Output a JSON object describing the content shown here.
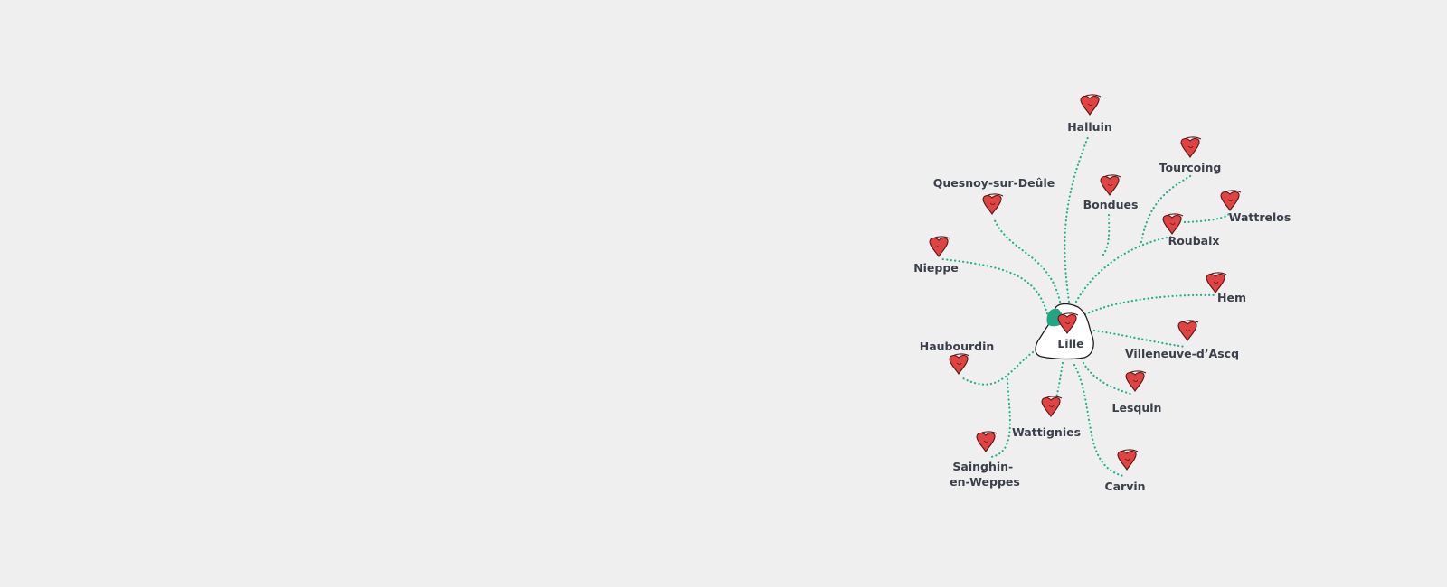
{
  "map": {
    "hub": {
      "name": "Lille",
      "icon": "city-outline-icon"
    },
    "destinations": [
      {
        "name": "Halluin"
      },
      {
        "name": "Quesnoy-sur-Deûle"
      },
      {
        "name": "Bondues"
      },
      {
        "name": "Tourcoing"
      },
      {
        "name": "Wattrelos"
      },
      {
        "name": "Roubaix"
      },
      {
        "name": "Nieppe"
      },
      {
        "name": "Hem"
      },
      {
        "name": "Villeneuve-d’Ascq"
      },
      {
        "name": "Haubourdin"
      },
      {
        "name": "Lesquin"
      },
      {
        "name": "Wattignies"
      },
      {
        "name": "Sainghin-",
        "name_line2": "en-Weppes"
      },
      {
        "name": "Carvin"
      }
    ],
    "marker_icon": "red-heart-pin-icon",
    "hub_marker_icon": "green-leaf-icon",
    "colors": {
      "background": "#efefef",
      "route": "#22b08b",
      "marker": "#e04343",
      "hub_fill": "#ffffff",
      "hub_stroke": "#1c1c1c",
      "leaf": "#22a583",
      "label": "#3b3f4a"
    }
  }
}
